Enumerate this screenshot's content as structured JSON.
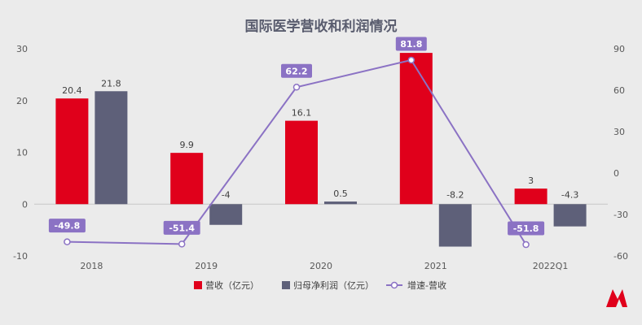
{
  "chart_data": {
    "type": "bar",
    "title": "国际医学营收和利润情况",
    "categories": [
      "2018",
      "2019",
      "2020",
      "2021",
      "2022Q1"
    ],
    "series": [
      {
        "name": "营收（亿元）",
        "kind": "bar",
        "axis": "left",
        "color": "#e0001b",
        "values": [
          20.4,
          9.9,
          16.1,
          29.2,
          3
        ]
      },
      {
        "name": "归母净利润（亿元）",
        "kind": "bar",
        "axis": "left",
        "color": "#5e6079",
        "values": [
          21.8,
          -4,
          0.5,
          -8.2,
          -4.3
        ]
      },
      {
        "name": "增速-营收",
        "kind": "line",
        "axis": "right",
        "color": "#8b72c4",
        "values": [
          -49.8,
          -51.4,
          62.2,
          81.8,
          -51.8
        ]
      }
    ],
    "ylim_left": [
      -10,
      30
    ],
    "yticks_left": [
      "30",
      "20",
      "10",
      "0",
      "-10"
    ],
    "ylim_right": [
      -60,
      90
    ],
    "yticks_right": [
      "90",
      "60",
      "30",
      "0",
      "-30",
      "-60"
    ],
    "grid": false,
    "legend_position": "bottom"
  }
}
